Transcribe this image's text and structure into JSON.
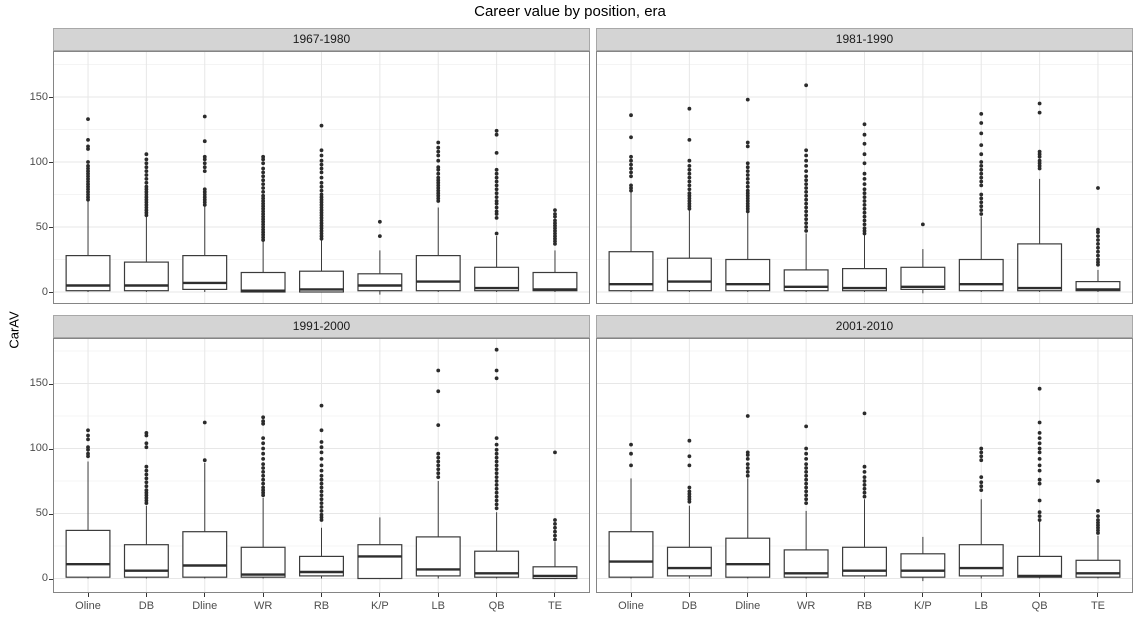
{
  "title": "Career value by position, era",
  "y_axis": {
    "label": "CarAV"
  },
  "colors": {
    "strip_fill": "#D4D4D4",
    "strip_border": "#A8A8A8",
    "strip_text": "#1A1A1A",
    "panel_border": "#858585",
    "grid_major": "#E7E7E7",
    "grid_minor": "#F4F4F4",
    "box_stroke": "#3B3B3B",
    "box_fill": "#FFFFFF",
    "median_stroke": "#2E2E2E",
    "outlier": "#2B2B2B",
    "axis_text": "#4D4D4D",
    "tick_mark": "#333333"
  },
  "chart_data": {
    "type": "boxplot",
    "title": "Career value by position, era",
    "ylabel": "CarAV",
    "xlabel": "",
    "legend": "none",
    "grid": true,
    "ylim": [
      -10.5,
      185
    ],
    "y_major": [
      0,
      50,
      100,
      150
    ],
    "y_minor": [
      25,
      75,
      125,
      175
    ],
    "categories": [
      "Oline",
      "DB",
      "Dline",
      "WR",
      "RB",
      "K/P",
      "LB",
      "QB",
      "TE"
    ],
    "facets": [
      {
        "label": "1967-1980",
        "boxes": [
          {
            "pos": "Oline",
            "lo": 0,
            "q1": 1,
            "med": 5,
            "q3": 28,
            "hi": 70,
            "out": [
              71,
              73,
              75,
              77,
              79,
              81,
              83,
              85,
              87,
              89,
              91,
              93,
              95,
              97,
              100,
              110,
              112,
              117,
              133
            ]
          },
          {
            "pos": "DB",
            "lo": 0,
            "q1": 1,
            "med": 5,
            "q3": 23,
            "hi": 58,
            "out": [
              59,
              61,
              63,
              65,
              67,
              69,
              71,
              73,
              75,
              77,
              79,
              81,
              84,
              87,
              90,
              93,
              96,
              99,
              102,
              106
            ]
          },
          {
            "pos": "Dline",
            "lo": 0,
            "q1": 2,
            "med": 7,
            "q3": 28,
            "hi": 66,
            "out": [
              67,
              69,
              71,
              73,
              75,
              77,
              79,
              93,
              96,
              99,
              102,
              104,
              116,
              135
            ]
          },
          {
            "pos": "WR",
            "lo": 0,
            "q1": 0,
            "med": 1,
            "q3": 15,
            "hi": 39,
            "out": [
              40,
              42,
              44,
              46,
              48,
              50,
              52,
              54,
              56,
              58,
              60,
              62,
              64,
              66,
              68,
              70,
              72,
              74,
              77,
              80,
              83,
              86,
              89,
              92,
              95,
              99,
              102,
              104
            ]
          },
          {
            "pos": "RB",
            "lo": 0,
            "q1": 0,
            "med": 2,
            "q3": 16,
            "hi": 40,
            "out": [
              41,
              43,
              45,
              47,
              49,
              51,
              53,
              55,
              57,
              59,
              61,
              63,
              65,
              67,
              69,
              71,
              73,
              75,
              78,
              81,
              84,
              88,
              92,
              95,
              98,
              101,
              105,
              109,
              128
            ]
          },
          {
            "pos": "K/P",
            "lo": -2,
            "q1": 1,
            "med": 5,
            "q3": 14,
            "hi": 32,
            "out": [
              43,
              54
            ]
          },
          {
            "pos": "LB",
            "lo": 0,
            "q1": 1,
            "med": 8,
            "q3": 28,
            "hi": 65,
            "out": [
              70,
              72,
              74,
              76,
              78,
              80,
              82,
              84,
              86,
              88,
              91,
              94,
              96,
              101,
              105,
              108,
              111,
              115
            ]
          },
          {
            "pos": "QB",
            "lo": 0,
            "q1": 1,
            "med": 3,
            "q3": 19,
            "hi": 43,
            "out": [
              45,
              57,
              60,
              62,
              65,
              68,
              70,
              73,
              76,
              79,
              82,
              85,
              88,
              91,
              94,
              107,
              121,
              124
            ]
          },
          {
            "pos": "TE",
            "lo": 0,
            "q1": 1,
            "med": 2,
            "q3": 15,
            "hi": 32,
            "out": [
              37,
              39,
              41,
              43,
              45,
              47,
              49,
              51,
              53,
              55,
              58,
              60,
              63
            ]
          }
        ]
      },
      {
        "label": "1981-1990",
        "boxes": [
          {
            "pos": "Oline",
            "lo": 0,
            "q1": 1,
            "med": 6,
            "q3": 31,
            "hi": 77,
            "out": [
              78,
              80,
              82,
              89,
              92,
              95,
              98,
              101,
              104,
              119,
              136
            ]
          },
          {
            "pos": "DB",
            "lo": 0,
            "q1": 1,
            "med": 8,
            "q3": 26,
            "hi": 63,
            "out": [
              64,
              66,
              68,
              70,
              72,
              74,
              76,
              79,
              82,
              85,
              88,
              91,
              94,
              97,
              101,
              117,
              141
            ]
          },
          {
            "pos": "Dline",
            "lo": 0,
            "q1": 1,
            "med": 6,
            "q3": 25,
            "hi": 61,
            "out": [
              62,
              64,
              66,
              68,
              70,
              72,
              74,
              76,
              78,
              81,
              84,
              87,
              90,
              93,
              96,
              99,
              112,
              115,
              148
            ]
          },
          {
            "pos": "WR",
            "lo": 0,
            "q1": 1,
            "med": 4,
            "q3": 17,
            "hi": 45,
            "out": [
              47,
              50,
              53,
              56,
              59,
              62,
              65,
              68,
              71,
              74,
              77,
              80,
              83,
              86,
              89,
              93,
              97,
              101,
              105,
              109,
              159
            ]
          },
          {
            "pos": "RB",
            "lo": 0,
            "q1": 1,
            "med": 3,
            "q3": 18,
            "hi": 44,
            "out": [
              45,
              47,
              49,
              52,
              55,
              58,
              61,
              64,
              67,
              70,
              73,
              76,
              79,
              83,
              87,
              91,
              99,
              106,
              114,
              121,
              129
            ]
          },
          {
            "pos": "K/P",
            "lo": -1,
            "q1": 2,
            "med": 4,
            "q3": 19,
            "hi": 33,
            "out": [
              52
            ]
          },
          {
            "pos": "LB",
            "lo": 0,
            "q1": 1,
            "med": 6,
            "q3": 25,
            "hi": 58,
            "out": [
              60,
              63,
              66,
              69,
              72,
              75,
              82,
              85,
              88,
              91,
              94,
              97,
              100,
              106,
              113,
              122,
              130,
              137
            ]
          },
          {
            "pos": "QB",
            "lo": 0,
            "q1": 1,
            "med": 3,
            "q3": 37,
            "hi": 87,
            "out": [
              95,
              97,
              99,
              101,
              104,
              106,
              108,
              138,
              145
            ]
          },
          {
            "pos": "TE",
            "lo": 0,
            "q1": 1,
            "med": 2,
            "q3": 8,
            "hi": 17,
            "out": [
              21,
              23,
              25,
              28,
              31,
              34,
              37,
              40,
              43,
              46,
              48,
              80
            ]
          }
        ]
      },
      {
        "label": "1991-2000",
        "boxes": [
          {
            "pos": "Oline",
            "lo": 0,
            "q1": 1,
            "med": 11,
            "q3": 37,
            "hi": 90,
            "out": [
              94,
              96,
              99,
              101,
              107,
              110,
              114
            ]
          },
          {
            "pos": "DB",
            "lo": 0,
            "q1": 1,
            "med": 6,
            "q3": 26,
            "hi": 56,
            "out": [
              58,
              60,
              62,
              64,
              66,
              68,
              71,
              74,
              77,
              80,
              83,
              86,
              101,
              104,
              110,
              112
            ]
          },
          {
            "pos": "Dline",
            "lo": 0,
            "q1": 1,
            "med": 10,
            "q3": 36,
            "hi": 89,
            "out": [
              91,
              120
            ]
          },
          {
            "pos": "WR",
            "lo": 0,
            "q1": 1,
            "med": 3,
            "q3": 24,
            "hi": 62,
            "out": [
              64,
              66,
              68,
              70,
              73,
              76,
              79,
              82,
              85,
              88,
              92,
              96,
              100,
              104,
              108,
              119,
              121,
              124
            ]
          },
          {
            "pos": "RB",
            "lo": 0,
            "q1": 2,
            "med": 5,
            "q3": 17,
            "hi": 39,
            "out": [
              45,
              47,
              49,
              52,
              55,
              58,
              61,
              64,
              67,
              70,
              73,
              76,
              79,
              83,
              87,
              92,
              97,
              101,
              105,
              114,
              133
            ]
          },
          {
            "pos": "K/P",
            "lo": 0,
            "q1": 0,
            "med": 17,
            "q3": 26,
            "hi": 47,
            "out": []
          },
          {
            "pos": "LB",
            "lo": 0,
            "q1": 2,
            "med": 7,
            "q3": 32,
            "hi": 75,
            "out": [
              78,
              81,
              84,
              87,
              90,
              93,
              96,
              118,
              144,
              160
            ]
          },
          {
            "pos": "QB",
            "lo": 0,
            "q1": 1,
            "med": 4,
            "q3": 21,
            "hi": 51,
            "out": [
              54,
              57,
              60,
              63,
              66,
              69,
              72,
              75,
              78,
              81,
              84,
              87,
              90,
              93,
              96,
              99,
              103,
              108,
              154,
              160,
              176
            ]
          },
          {
            "pos": "TE",
            "lo": 0,
            "q1": 0,
            "med": 2,
            "q3": 9,
            "hi": 28,
            "out": [
              30,
              33,
              36,
              39,
              42,
              45,
              97
            ]
          }
        ]
      },
      {
        "label": "2001-2010",
        "boxes": [
          {
            "pos": "Oline",
            "lo": 0,
            "q1": 1,
            "med": 13,
            "q3": 36,
            "hi": 77,
            "out": [
              87,
              96,
              103
            ]
          },
          {
            "pos": "DB",
            "lo": 0,
            "q1": 2,
            "med": 8,
            "q3": 24,
            "hi": 56,
            "out": [
              59,
              61,
              63,
              65,
              67,
              70,
              87,
              94,
              106
            ]
          },
          {
            "pos": "Dline",
            "lo": 0,
            "q1": 1,
            "med": 11,
            "q3": 31,
            "hi": 77,
            "out": [
              79,
              82,
              85,
              88,
              92,
              95,
              97,
              125
            ]
          },
          {
            "pos": "WR",
            "lo": 0,
            "q1": 1,
            "med": 4,
            "q3": 22,
            "hi": 52,
            "out": [
              58,
              61,
              64,
              67,
              70,
              73,
              76,
              79,
              82,
              85,
              88,
              92,
              96,
              100,
              117
            ]
          },
          {
            "pos": "RB",
            "lo": 0,
            "q1": 2,
            "med": 6,
            "q3": 24,
            "hi": 61,
            "out": [
              63,
              66,
              69,
              72,
              75,
              78,
              82,
              86,
              127
            ]
          },
          {
            "pos": "K/P",
            "lo": -2,
            "q1": 1,
            "med": 6,
            "q3": 19,
            "hi": 32,
            "out": []
          },
          {
            "pos": "LB",
            "lo": 0,
            "q1": 2,
            "med": 8,
            "q3": 26,
            "hi": 61,
            "out": [
              68,
              71,
              74,
              78,
              91,
              94,
              97,
              100
            ]
          },
          {
            "pos": "QB",
            "lo": 0,
            "q1": 1,
            "med": 2,
            "q3": 17,
            "hi": 44,
            "out": [
              45,
              48,
              51,
              60,
              73,
              76,
              83,
              87,
              92,
              97,
              100,
              104,
              108,
              112,
              120,
              146
            ]
          },
          {
            "pos": "TE",
            "lo": 0,
            "q1": 1,
            "med": 4,
            "q3": 14,
            "hi": 33,
            "out": [
              35,
              37,
              39,
              41,
              43,
              45,
              48,
              52,
              75
            ]
          }
        ]
      }
    ]
  }
}
